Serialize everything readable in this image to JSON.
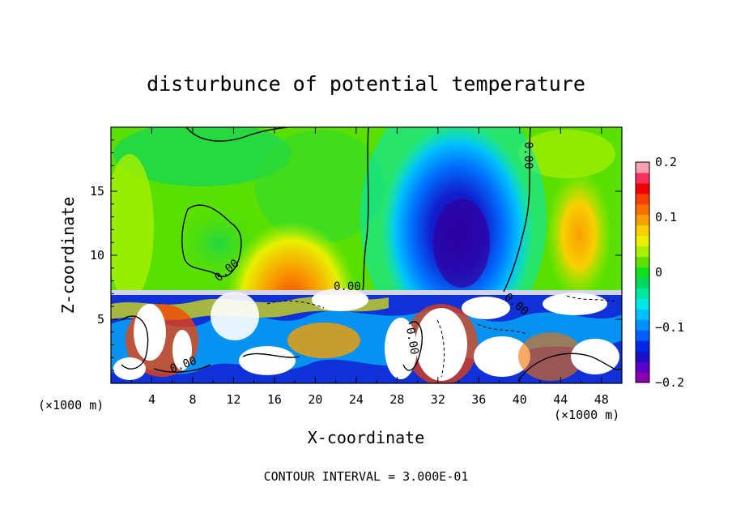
{
  "chart_data": {
    "type": "heatmap",
    "title": "disturbunce of potential temperature",
    "xlabel": "X-coordinate",
    "ylabel": "Z-coordinate",
    "x_unit": "(×1000 m)",
    "y_unit": "(×1000 m)",
    "xlim": [
      0,
      50
    ],
    "ylim": [
      0,
      20
    ],
    "x_ticks": [
      4,
      8,
      12,
      16,
      20,
      24,
      28,
      32,
      36,
      40,
      44,
      48
    ],
    "y_ticks": [
      5,
      10,
      15
    ],
    "colorbar": {
      "ticks": [
        "0.2",
        "0.1",
        "0",
        "−0.1",
        "−0.2"
      ],
      "tick_values": [
        0.2,
        0.1,
        0,
        -0.1,
        -0.2
      ],
      "range": [
        -0.2,
        0.2
      ],
      "colors": [
        "#8a00b0",
        "#5a00c8",
        "#1a10c8",
        "#0028e8",
        "#0060ff",
        "#0090ff",
        "#00c0ff",
        "#00e8e8",
        "#00e8a0",
        "#00d860",
        "#10e020",
        "#60e000",
        "#a8f000",
        "#e8f000",
        "#f8d000",
        "#f8a000",
        "#f87000",
        "#f84000",
        "#f00000",
        "#f83060",
        "#f8a0b0"
      ]
    },
    "contour_labels": [
      "0.00",
      "0.00",
      "0.00",
      "0.00",
      "0.00",
      "0.00"
    ],
    "annotation": "CONTOUR INTERVAL = 3.000E-01"
  }
}
